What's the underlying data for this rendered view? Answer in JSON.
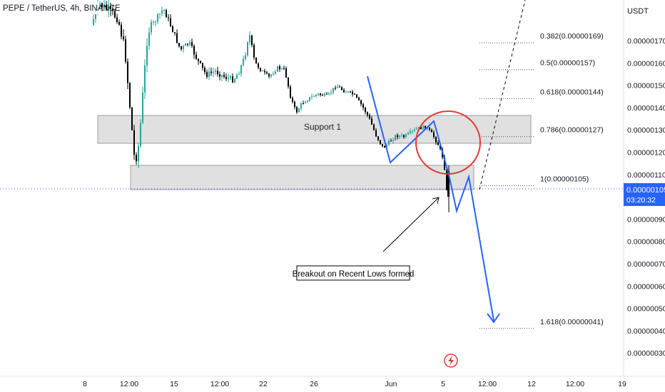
{
  "header": {
    "symbol_title": "PEPE / TetherUS, 4h, BINANCE"
  },
  "price_axis": {
    "currency": "USDT",
    "labels": [
      "0.00000170",
      "0.00000160",
      "0.00000150",
      "0.00000140",
      "0.00000130",
      "0.00000120",
      "0.00000110",
      "0.00000090",
      "0.00000080",
      "0.00000070",
      "0.00000060",
      "0.00000050",
      "0.00000040",
      "0.00000030"
    ],
    "current_price": "0.00000105",
    "countdown": "03:20:32"
  },
  "time_axis": {
    "labels": [
      "8",
      "12:00",
      "15",
      "12:00",
      "22",
      "26",
      "Jun",
      "5",
      "12:00",
      "12",
      "12:00",
      "19"
    ]
  },
  "annotations": {
    "support_label": "Support 1",
    "breakout_label": "Breakout on Recent Lows formed",
    "alert_icon": "lightning-icon"
  },
  "fib_levels": [
    {
      "label": "0.382(0.00000169)",
      "price": 1.69e-06
    },
    {
      "label": "0.5(0.00000157)",
      "price": 1.57e-06
    },
    {
      "label": "0.618(0.00000144)",
      "price": 1.44e-06
    },
    {
      "label": "0.786(0.00000127)",
      "price": 1.27e-06
    },
    {
      "label": "1(0.00000105)",
      "price": 1.05e-06
    },
    {
      "label": "1.618(0.00000041)",
      "price": 4.1e-07
    }
  ],
  "colors": {
    "up": "#26a69a",
    "down": "#000000",
    "projection": "#2962ff",
    "circle": "#e53935",
    "price_tag": "#2962ff",
    "zone": "#dadada"
  },
  "chart_data": {
    "type": "candlestick",
    "title": "PEPE / TetherUS, 4h, BINANCE",
    "ylim": [
      2.6e-07,
      1.92e-06
    ],
    "y_ticks": [
      1.7e-06,
      1.6e-06,
      1.5e-06,
      1.4e-06,
      1.3e-06,
      1.2e-06,
      1.1e-06,
      9e-07,
      8e-07,
      7e-07,
      6e-07,
      5e-07,
      4e-07,
      3e-07
    ],
    "support_zones": [
      {
        "name": "Support 1",
        "low": 1.24e-06,
        "high": 1.37e-06
      },
      {
        "name": "",
        "low": 1.05e-06,
        "high": 1.16e-06
      }
    ],
    "projection_path_prices": [
      1.52e-06,
      1.16e-06,
      1.35e-06,
      1.16e-06,
      9.7e-07,
      1.1e-06,
      4.6e-07
    ]
  }
}
